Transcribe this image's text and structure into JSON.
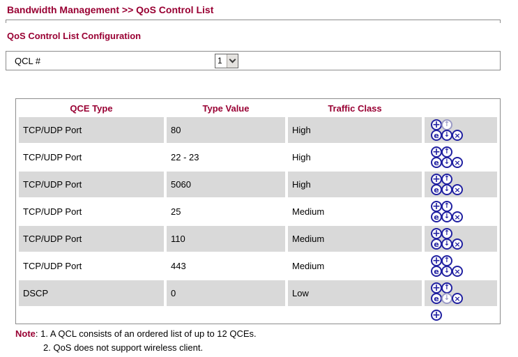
{
  "page": {
    "title": "Bandwidth Management >> QoS Control List",
    "section_title": "QoS Control List Configuration"
  },
  "qcl_selector": {
    "label": "QCL #",
    "value": "1"
  },
  "table": {
    "columns": [
      "QCE Type",
      "Type Value",
      "Traffic Class",
      ""
    ],
    "rows": [
      {
        "qce_type": "TCP/UDP Port",
        "type_value": "80",
        "traffic_class": "High",
        "up_disabled": true,
        "down_disabled": false
      },
      {
        "qce_type": "TCP/UDP Port",
        "type_value": "22 - 23",
        "traffic_class": "High",
        "up_disabled": false,
        "down_disabled": false
      },
      {
        "qce_type": "TCP/UDP Port",
        "type_value": "5060",
        "traffic_class": "High",
        "up_disabled": false,
        "down_disabled": false
      },
      {
        "qce_type": "TCP/UDP Port",
        "type_value": "25",
        "traffic_class": "Medium",
        "up_disabled": false,
        "down_disabled": false
      },
      {
        "qce_type": "TCP/UDP Port",
        "type_value": "110",
        "traffic_class": "Medium",
        "up_disabled": false,
        "down_disabled": false
      },
      {
        "qce_type": "TCP/UDP Port",
        "type_value": "443",
        "traffic_class": "Medium",
        "up_disabled": false,
        "down_disabled": false
      },
      {
        "qce_type": "DSCP",
        "type_value": "0",
        "traffic_class": "Low",
        "up_disabled": false,
        "down_disabled": true
      }
    ],
    "icons": {
      "add": "+",
      "move_up": "↑",
      "edit": "e",
      "move_down": "↓",
      "delete": "×"
    }
  },
  "note": {
    "label": "Note",
    "separator": ": ",
    "lines": [
      "1. A QCL consists of an ordered list of up to 12 QCEs.",
      "2. QoS does not support wireless client."
    ]
  },
  "colors": {
    "heading": "#990033",
    "icon": "#2121a1",
    "icon_disabled": "#9a9ac6",
    "row_alt": "#d9d9d9",
    "border": "#8c8c8c"
  }
}
